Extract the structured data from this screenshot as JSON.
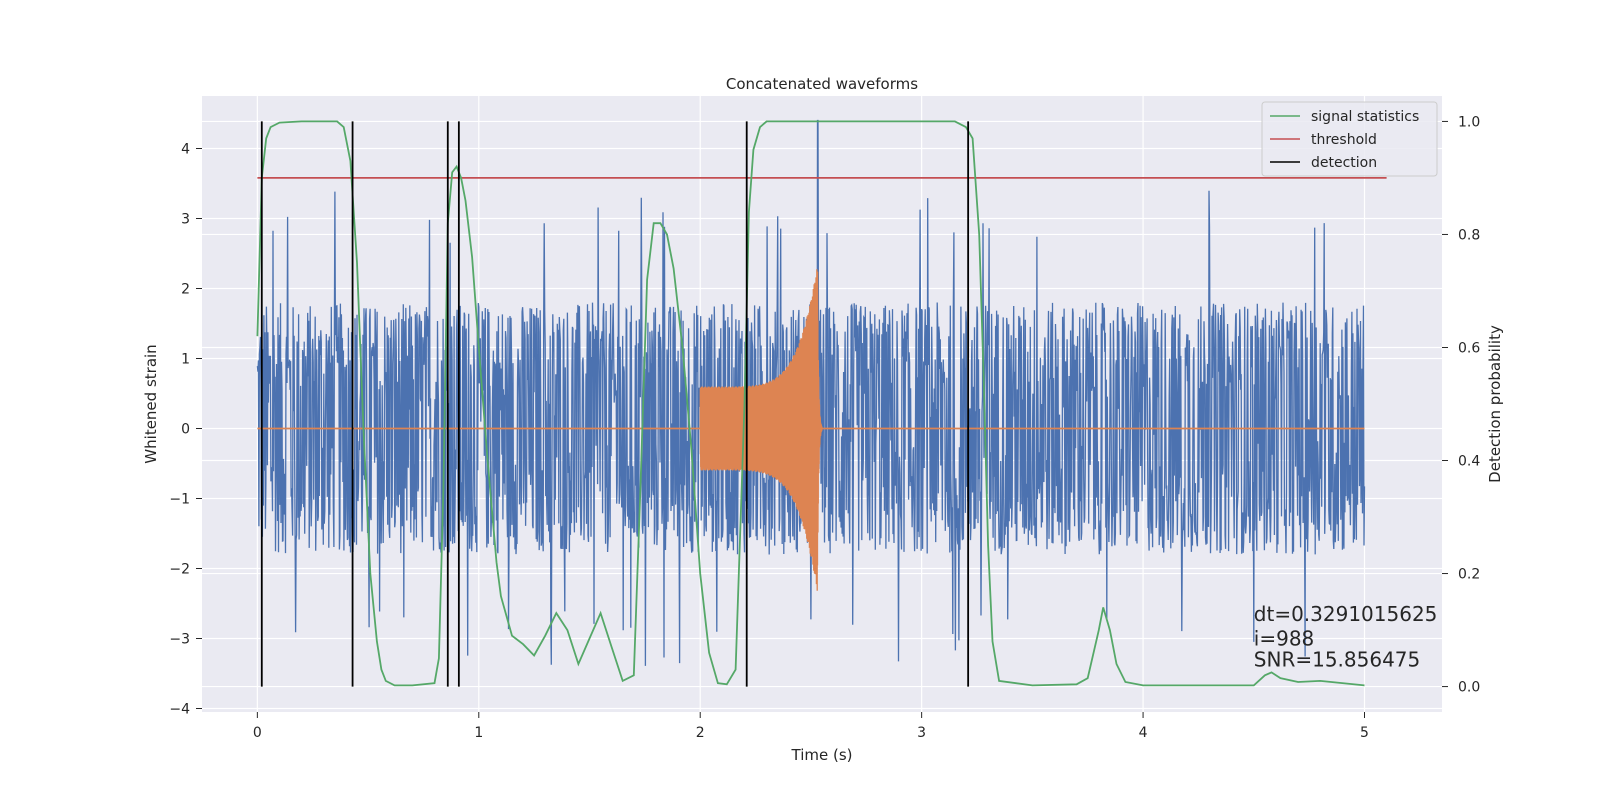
{
  "chart_data": {
    "type": "line",
    "title": "Concatenated waveforms",
    "xlabel": "Time (s)",
    "ylabel": "Whitened strain",
    "ylabel_right": "Detection probability",
    "xlim": [
      -0.25,
      5.35
    ],
    "ylim": [
      -4.05,
      4.75
    ],
    "ylim_right": [
      -0.045,
      1.045
    ],
    "xticks": [
      0,
      1,
      2,
      3,
      4,
      5
    ],
    "yticks": [
      -4,
      -3,
      -2,
      -1,
      0,
      1,
      2,
      3,
      4
    ],
    "yticks_right": [
      0.0,
      0.2,
      0.4,
      0.6,
      0.8,
      1.0
    ],
    "grid": true,
    "legend_position": "top-right",
    "legend": [
      {
        "label": "signal statistics",
        "color": "#55a868"
      },
      {
        "label": "threshold",
        "color": "#c44e52"
      },
      {
        "label": "detection",
        "color": "#000000"
      }
    ],
    "series": [
      {
        "name": "signal statistics",
        "axis": "right",
        "color": "#55a868",
        "x": [
          0.0,
          0.02,
          0.04,
          0.06,
          0.1,
          0.2,
          0.3,
          0.36,
          0.39,
          0.42,
          0.45,
          0.48,
          0.51,
          0.54,
          0.56,
          0.58,
          0.62,
          0.7,
          0.8,
          0.82,
          0.84,
          0.86,
          0.88,
          0.9,
          0.92,
          0.94,
          0.97,
          1.0,
          1.04,
          1.08,
          1.1,
          1.15,
          1.2,
          1.25,
          1.3,
          1.35,
          1.4,
          1.45,
          1.5,
          1.55,
          1.6,
          1.65,
          1.7,
          1.73,
          1.76,
          1.79,
          1.82,
          1.85,
          1.88,
          1.92,
          1.96,
          2.0,
          2.04,
          2.08,
          2.12,
          2.16,
          2.2,
          2.22,
          2.24,
          2.27,
          2.3,
          2.35,
          2.4,
          3.0,
          3.15,
          3.2,
          3.23,
          3.26,
          3.28,
          3.3,
          3.32,
          3.35,
          3.5,
          3.7,
          3.75,
          3.8,
          3.82,
          3.85,
          3.88,
          3.92,
          4.0,
          4.5,
          4.55,
          4.58,
          4.62,
          4.7,
          4.8,
          5.0
        ],
        "values": [
          0.62,
          0.9,
          0.97,
          0.99,
          0.998,
          1.0,
          1.0,
          1.0,
          0.99,
          0.93,
          0.75,
          0.45,
          0.2,
          0.08,
          0.03,
          0.01,
          0.002,
          0.002,
          0.006,
          0.05,
          0.35,
          0.82,
          0.91,
          0.92,
          0.9,
          0.86,
          0.76,
          0.6,
          0.4,
          0.22,
          0.16,
          0.09,
          0.075,
          0.055,
          0.09,
          0.13,
          0.1,
          0.04,
          0.085,
          0.13,
          0.07,
          0.01,
          0.02,
          0.35,
          0.72,
          0.82,
          0.82,
          0.8,
          0.74,
          0.6,
          0.42,
          0.2,
          0.06,
          0.006,
          0.004,
          0.03,
          0.5,
          0.84,
          0.95,
          0.99,
          1.0,
          1.0,
          1.0,
          1.0,
          1.0,
          0.99,
          0.97,
          0.8,
          0.55,
          0.25,
          0.08,
          0.01,
          0.002,
          0.004,
          0.015,
          0.1,
          0.14,
          0.1,
          0.04,
          0.008,
          0.002,
          0.002,
          0.02,
          0.025,
          0.015,
          0.008,
          0.01,
          0.002
        ]
      },
      {
        "name": "threshold",
        "axis": "right",
        "color": "#c44e52",
        "x": [
          0.0,
          5.1
        ],
        "values": [
          0.9,
          0.9
        ]
      }
    ],
    "detection_times": [
      0.02,
      0.43,
      0.86,
      0.91,
      2.21,
      3.21
    ],
    "detection_range_right": [
      0.0,
      1.0
    ],
    "noise": {
      "color": "#4c72b0",
      "x_range": [
        0.0,
        5.0
      ],
      "typical_amplitude": 1.8,
      "peak_max": 4.4,
      "peak_min": -3.6
    },
    "injection": {
      "color": "#dd8452",
      "x_range": [
        2.0,
        2.55
      ],
      "amplitude_start": 0.6,
      "amplitude_peak": 2.35,
      "peak_time": 2.53
    },
    "annotations": [
      {
        "text": "dt=0.3291015625",
        "x": 4.5,
        "y": -2.75
      },
      {
        "text": " i=988",
        "x": 4.5,
        "y": -3.1
      },
      {
        "text": "SNR=15.856475",
        "x": 4.5,
        "y": -3.4
      }
    ]
  }
}
